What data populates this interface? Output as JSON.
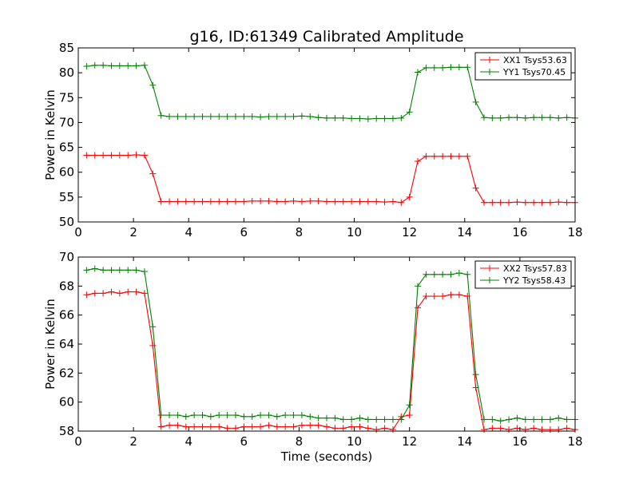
{
  "chart_data": [
    {
      "type": "line",
      "title": "g16, ID:61349 Calibrated Amplitude",
      "xlabel": "",
      "ylabel": "Power in Kelvin",
      "xlim": [
        0,
        18
      ],
      "ylim": [
        50,
        85
      ],
      "xticks": [
        "0",
        "2",
        "4",
        "6",
        "8",
        "10",
        "12",
        "14",
        "16",
        "18"
      ],
      "yticks": [
        "50",
        "55",
        "60",
        "65",
        "70",
        "75",
        "80",
        "85"
      ],
      "legend_position": "top-right",
      "x": [
        0.3,
        0.6,
        0.9,
        1.2,
        1.5,
        1.8,
        2.1,
        2.4,
        2.7,
        3.0,
        3.3,
        3.6,
        3.9,
        4.2,
        4.5,
        4.8,
        5.1,
        5.4,
        5.7,
        6.0,
        6.3,
        6.6,
        6.9,
        7.2,
        7.5,
        7.8,
        8.1,
        8.4,
        8.7,
        9.0,
        9.3,
        9.6,
        9.9,
        10.2,
        10.5,
        10.8,
        11.1,
        11.4,
        11.7,
        12.0,
        12.3,
        12.6,
        12.9,
        13.2,
        13.5,
        13.8,
        14.1,
        14.4,
        14.7,
        15.0,
        15.3,
        15.6,
        15.9,
        16.2,
        16.5,
        16.8,
        17.1,
        17.4,
        17.7,
        18.0
      ],
      "series": [
        {
          "name": "XX1 Tsys53.63",
          "color": "#ff0000",
          "values": [
            63.4,
            63.4,
            63.4,
            63.4,
            63.4,
            63.4,
            63.5,
            63.4,
            59.7,
            54.1,
            54.1,
            54.1,
            54.1,
            54.1,
            54.1,
            54.1,
            54.1,
            54.1,
            54.1,
            54.1,
            54.2,
            54.2,
            54.2,
            54.1,
            54.1,
            54.2,
            54.1,
            54.2,
            54.2,
            54.1,
            54.1,
            54.1,
            54.1,
            54.1,
            54.1,
            54.1,
            54.0,
            54.1,
            53.9,
            55.0,
            62.2,
            63.2,
            63.2,
            63.2,
            63.2,
            63.2,
            63.2,
            56.8,
            53.9,
            53.9,
            53.9,
            53.9,
            54.0,
            53.9,
            53.9,
            53.9,
            53.9,
            54.0,
            53.9,
            53.9
          ]
        },
        {
          "name": "YY1 Tsys70.45",
          "color": "#008000",
          "values": [
            81.3,
            81.5,
            81.5,
            81.4,
            81.4,
            81.4,
            81.4,
            81.5,
            77.5,
            71.4,
            71.2,
            71.2,
            71.2,
            71.2,
            71.2,
            71.2,
            71.2,
            71.2,
            71.2,
            71.2,
            71.2,
            71.1,
            71.2,
            71.2,
            71.2,
            71.2,
            71.3,
            71.2,
            71.0,
            70.9,
            70.9,
            70.9,
            70.8,
            70.8,
            70.7,
            70.8,
            70.8,
            70.8,
            70.9,
            72.1,
            80.1,
            81.0,
            81.0,
            81.0,
            81.1,
            81.1,
            81.1,
            74.1,
            71.0,
            70.9,
            70.9,
            71.0,
            71.0,
            70.9,
            71.0,
            71.0,
            71.0,
            70.9,
            71.0,
            70.9
          ]
        }
      ]
    },
    {
      "type": "line",
      "title": "",
      "xlabel": "Time (seconds)",
      "ylabel": "Power in Kelvin",
      "xlim": [
        0,
        18
      ],
      "ylim": [
        58,
        70
      ],
      "xticks": [
        "0",
        "2",
        "4",
        "6",
        "8",
        "10",
        "12",
        "14",
        "16",
        "18"
      ],
      "yticks": [
        "58",
        "60",
        "62",
        "64",
        "66",
        "68",
        "70"
      ],
      "legend_position": "top-right",
      "x": [
        0.3,
        0.6,
        0.9,
        1.2,
        1.5,
        1.8,
        2.1,
        2.4,
        2.7,
        3.0,
        3.3,
        3.6,
        3.9,
        4.2,
        4.5,
        4.8,
        5.1,
        5.4,
        5.7,
        6.0,
        6.3,
        6.6,
        6.9,
        7.2,
        7.5,
        7.8,
        8.1,
        8.4,
        8.7,
        9.0,
        9.3,
        9.6,
        9.9,
        10.2,
        10.5,
        10.8,
        11.1,
        11.4,
        11.7,
        12.0,
        12.3,
        12.6,
        12.9,
        13.2,
        13.5,
        13.8,
        14.1,
        14.4,
        14.7,
        15.0,
        15.3,
        15.6,
        15.9,
        16.2,
        16.5,
        16.8,
        17.1,
        17.4,
        17.7,
        18.0
      ],
      "series": [
        {
          "name": "XX2 Tsys57.83",
          "color": "#ff0000",
          "values": [
            67.4,
            67.5,
            67.5,
            67.6,
            67.5,
            67.6,
            67.6,
            67.5,
            63.9,
            58.3,
            58.4,
            58.4,
            58.3,
            58.3,
            58.3,
            58.3,
            58.3,
            58.2,
            58.2,
            58.3,
            58.3,
            58.3,
            58.4,
            58.3,
            58.3,
            58.3,
            58.4,
            58.4,
            58.4,
            58.3,
            58.2,
            58.2,
            58.3,
            58.3,
            58.2,
            58.1,
            58.2,
            58.1,
            59.0,
            59.1,
            66.5,
            67.3,
            67.3,
            67.3,
            67.4,
            67.4,
            67.3,
            61.0,
            58.1,
            58.2,
            58.2,
            58.1,
            58.2,
            58.1,
            58.2,
            58.1,
            58.1,
            58.1,
            58.2,
            58.1
          ]
        },
        {
          "name": "YY2 Tsys58.43",
          "color": "#008000",
          "values": [
            69.1,
            69.2,
            69.1,
            69.1,
            69.1,
            69.1,
            69.1,
            69.0,
            65.2,
            59.1,
            59.1,
            59.1,
            59.0,
            59.1,
            59.1,
            59.0,
            59.1,
            59.1,
            59.1,
            59.0,
            59.0,
            59.1,
            59.1,
            59.0,
            59.1,
            59.1,
            59.1,
            59.0,
            58.9,
            58.9,
            58.9,
            58.8,
            58.8,
            58.9,
            58.8,
            58.8,
            58.8,
            58.8,
            58.8,
            59.8,
            68.0,
            68.8,
            68.8,
            68.8,
            68.8,
            68.9,
            68.8,
            61.9,
            58.8,
            58.8,
            58.7,
            58.8,
            58.9,
            58.8,
            58.8,
            58.8,
            58.8,
            58.9,
            58.8,
            58.8
          ]
        }
      ]
    }
  ]
}
